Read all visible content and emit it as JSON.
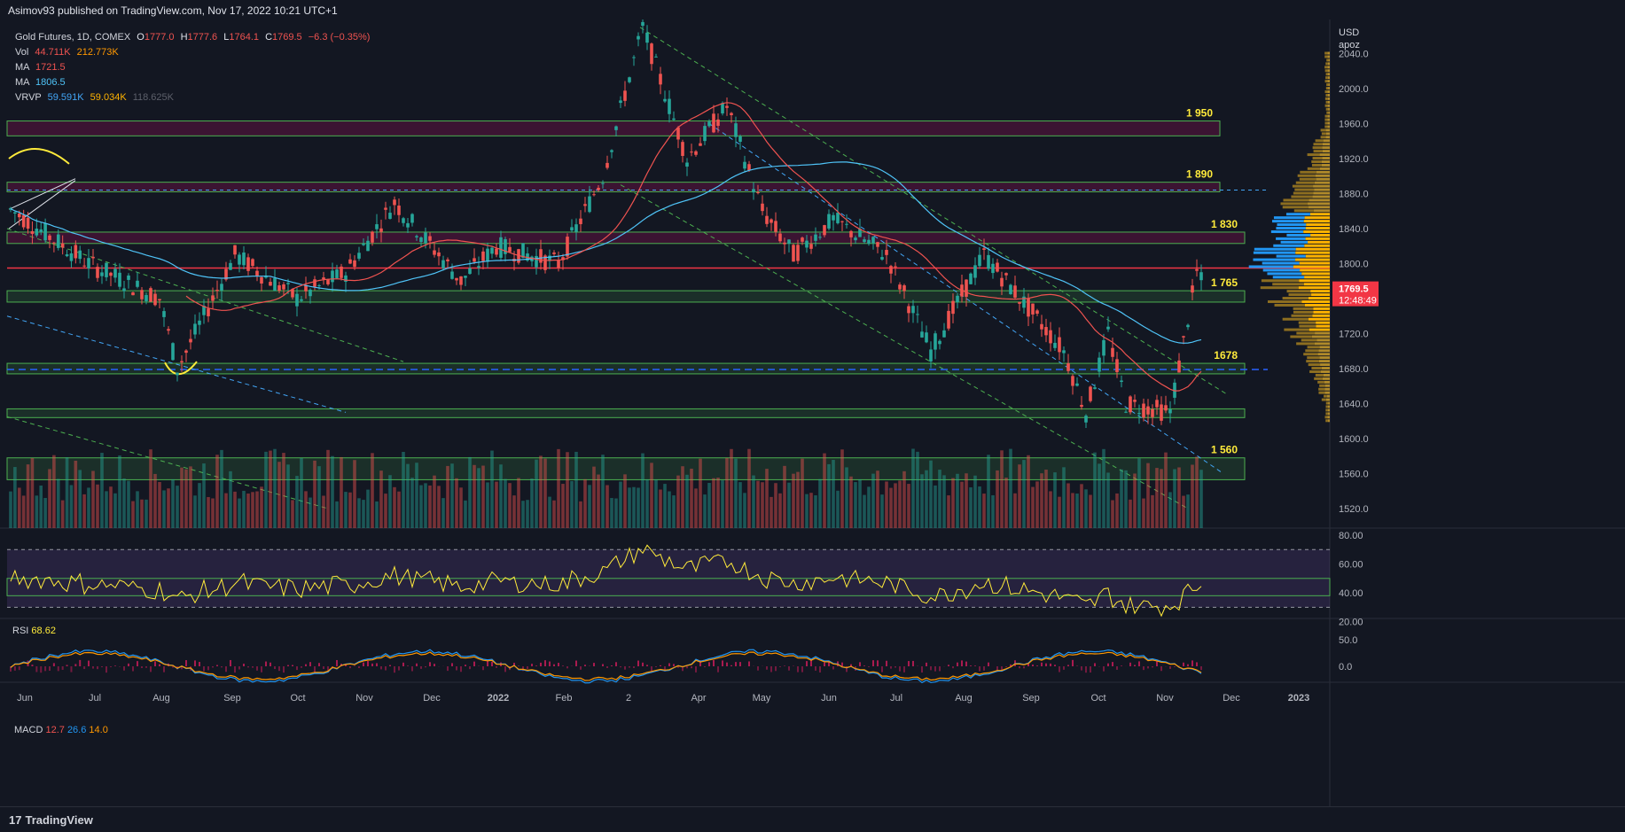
{
  "header": {
    "published": "Asimov93 published on TradingView.com, Nov 17, 2022 10:21 UTC+1"
  },
  "legend": {
    "symbol": "Gold Futures, 1D, COMEX",
    "ohlc": {
      "O": "1777.0",
      "H": "1777.6",
      "L": "1764.1",
      "C": "1769.5",
      "change": "−6.3 (−0.35%)"
    },
    "vol": {
      "label": "Vol",
      "a": "44.711K",
      "b": "212.773K"
    },
    "ma1": {
      "label": "MA",
      "value": "1721.5"
    },
    "ma2": {
      "label": "MA",
      "value": "1806.5"
    },
    "vrvp": {
      "label": "VRVP",
      "a": "59.591K",
      "b": "59.034K",
      "c": "118.625K"
    }
  },
  "price_axis": {
    "currency": "USD",
    "sub": "apoz",
    "ticks": [
      "2040.0",
      "2000.0",
      "1960.0",
      "1920.0",
      "1880.0",
      "1840.0",
      "1800.0",
      "1760.0",
      "1720.0",
      "1680.0",
      "1640.0",
      "1600.0",
      "1560.0",
      "1520.0"
    ],
    "last_price": "1769.5",
    "countdown": "12:48:49"
  },
  "time_axis": {
    "ticks": [
      "Jun",
      "Jul",
      "Aug",
      "Sep",
      "Oct",
      "Nov",
      "Dec",
      "2022",
      "Feb",
      "2",
      "Apr",
      "May",
      "Jun",
      "Jul",
      "Aug",
      "Sep",
      "Oct",
      "Nov",
      "Dec",
      "2023"
    ]
  },
  "zones": [
    {
      "label": "1 950",
      "low": 1946,
      "high": 1963,
      "kind": "resistance"
    },
    {
      "label": "1 890",
      "low": 1882,
      "high": 1893,
      "kind": "resistance"
    },
    {
      "label": "1 830",
      "low": 1823,
      "high": 1836,
      "kind": "resistance"
    },
    {
      "label": "1 765",
      "low": 1756,
      "high": 1769,
      "kind": "support"
    },
    {
      "label": "1678",
      "low": 1674,
      "high": 1686,
      "kind": "support"
    },
    {
      "label": "",
      "low": 1624,
      "high": 1634,
      "kind": "support"
    },
    {
      "label": "1 560",
      "low": 1553,
      "high": 1578,
      "kind": "support"
    }
  ],
  "rsi": {
    "label": "RSI",
    "value": "68.62",
    "ticks": [
      "80.00",
      "60.00",
      "40.00",
      "20.00"
    ]
  },
  "macd": {
    "label": "MACD",
    "a": "12.7",
    "b": "26.6",
    "c": "14.0",
    "ticks": [
      "50.0",
      "0.0"
    ]
  },
  "footer": {
    "brand": "TradingView",
    "logo": "17"
  },
  "colors": {
    "bg": "#131722",
    "up": "#26a69a",
    "down": "#ef5350",
    "zone": "#4caf50",
    "zone_label": "#ffeb3b",
    "ma_fast": "#ef5350",
    "ma_slow": "#2196f3",
    "price_badge": "#f23645"
  },
  "chart_data": {
    "type": "candlestick",
    "title": "Gold Futures, 1D, COMEX",
    "ylim": [
      1500,
      2050
    ],
    "key_price_path": [
      {
        "date": "Jun",
        "close": 1862
      },
      {
        "date": "Jul",
        "close": 1800
      },
      {
        "date": "Aug",
        "close": 1760
      },
      {
        "date": "Aug",
        "close": 1680
      },
      {
        "date": "Sep",
        "close": 1810
      },
      {
        "date": "Oct",
        "close": 1760
      },
      {
        "date": "Nov",
        "close": 1790
      },
      {
        "date": "Nov",
        "close": 1870
      },
      {
        "date": "Dec",
        "close": 1780
      },
      {
        "date": "2022",
        "close": 1820
      },
      {
        "date": "Feb",
        "close": 1800
      },
      {
        "date": "Feb",
        "close": 1900
      },
      {
        "date": "2",
        "close": 2070
      },
      {
        "date": "Apr",
        "close": 1920
      },
      {
        "date": "Apr",
        "close": 1980
      },
      {
        "date": "May",
        "close": 1860
      },
      {
        "date": "May",
        "close": 1810
      },
      {
        "date": "Jun",
        "close": 1850
      },
      {
        "date": "Jul",
        "close": 1810
      },
      {
        "date": "Jul",
        "close": 1700
      },
      {
        "date": "Aug",
        "close": 1810
      },
      {
        "date": "Sep",
        "close": 1700
      },
      {
        "date": "Sep",
        "close": 1630
      },
      {
        "date": "Oct",
        "close": 1720
      },
      {
        "date": "Oct",
        "close": 1640
      },
      {
        "date": "Nov",
        "close": 1630
      },
      {
        "date": "Nov",
        "close": 1790
      },
      {
        "date": "Nov",
        "close": 1769.5
      }
    ]
  }
}
